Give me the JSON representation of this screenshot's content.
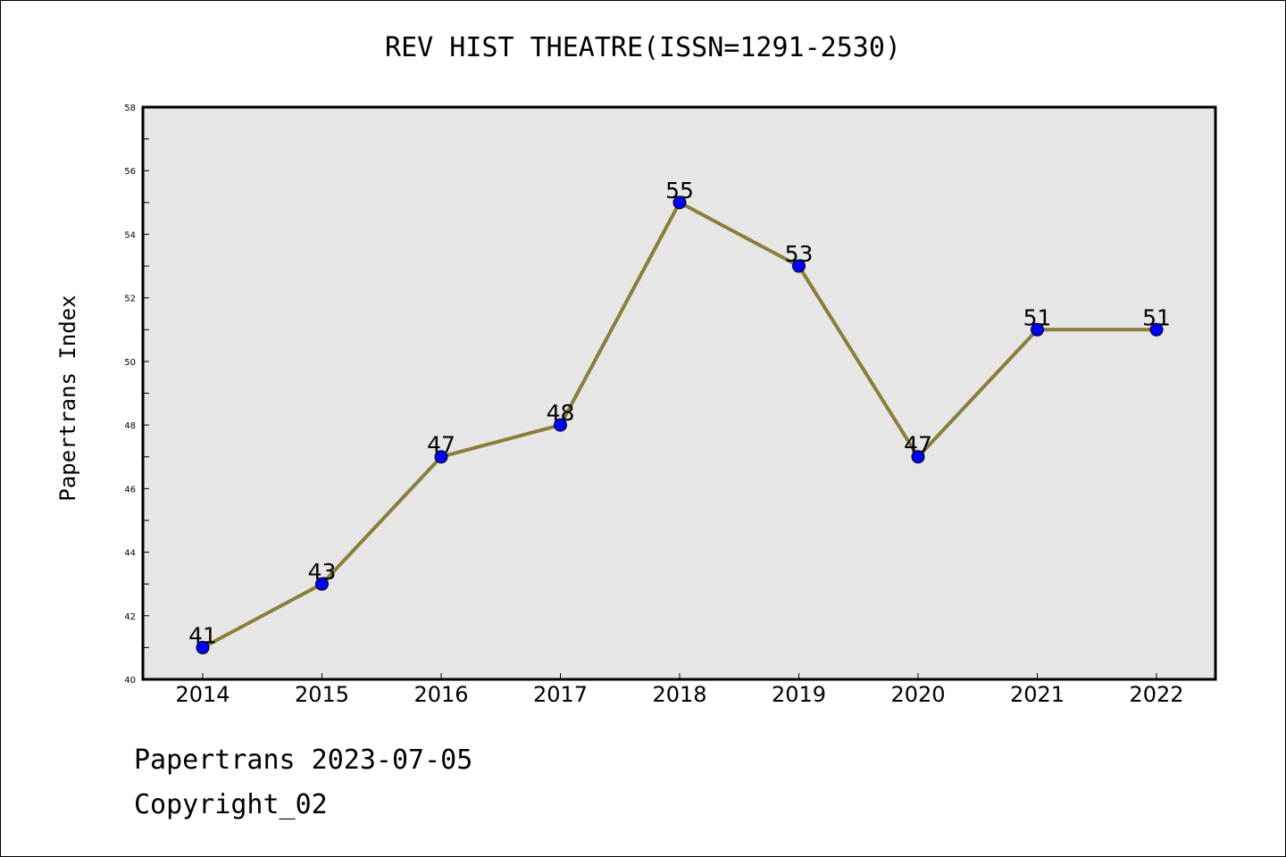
{
  "chart_data": {
    "type": "line",
    "title": "REV HIST THEATRE(ISSN=1291-2530)",
    "xlabel": "",
    "ylabel": "Papertrans Index",
    "categories": [
      "2014",
      "2015",
      "2016",
      "2017",
      "2018",
      "2019",
      "2020",
      "2021",
      "2022"
    ],
    "series": [
      {
        "values": [
          41,
          43,
          47,
          48,
          55,
          53,
          47,
          51,
          51
        ]
      }
    ],
    "ylim": [
      40,
      58
    ],
    "y_ticks": [
      40,
      42,
      44,
      46,
      48,
      50,
      52,
      54,
      56,
      58
    ],
    "grid": false,
    "legend": "none",
    "data_labels": true
  },
  "footer": {
    "date_line": "Papertrans 2023-07-05",
    "copyright_line": "Copyright_02"
  },
  "colors": {
    "plot_background": "#e6e6e6",
    "line": "#8b7d3a",
    "marker": "#0000ff",
    "axis": "#000000"
  }
}
